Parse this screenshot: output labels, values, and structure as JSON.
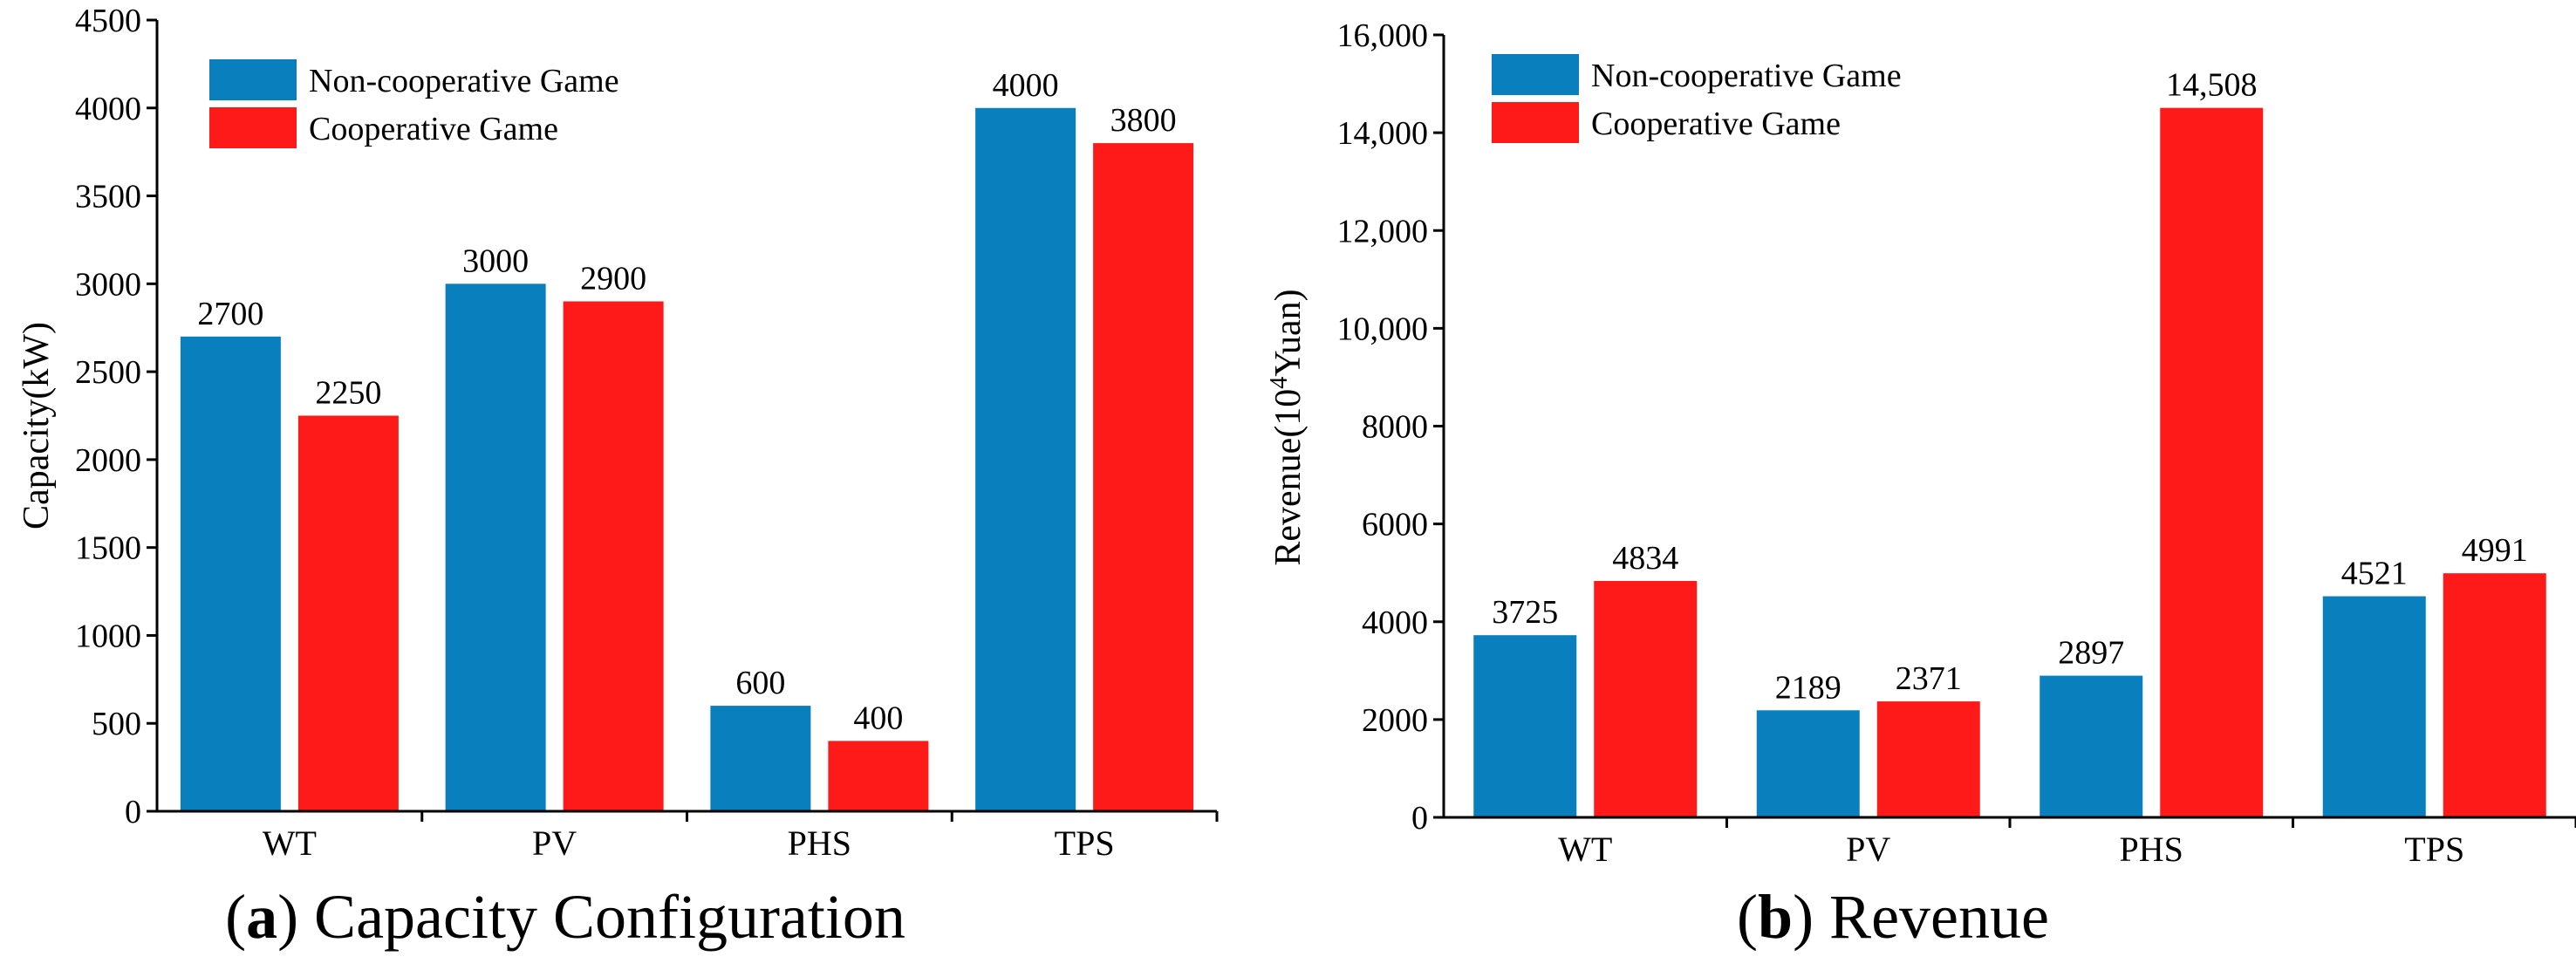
{
  "colors": {
    "series_a": "#0a7fbe",
    "series_b": "#ff1a1a",
    "axis": "#000000"
  },
  "chart_data": [
    {
      "type": "bar",
      "panel": "a",
      "caption_letter": "a",
      "caption_text": "Capacity Configuration",
      "title": "",
      "xlabel": "",
      "ylabel": "Capacity(kW)",
      "categories": [
        "WT",
        "PV",
        "PHS",
        "TPS"
      ],
      "series": [
        {
          "name": "Non-cooperative Game",
          "values": [
            2700,
            3000,
            600,
            4000
          ]
        },
        {
          "name": "Cooperative Game",
          "values": [
            2250,
            2900,
            400,
            3800
          ]
        }
      ],
      "value_labels": [
        [
          "2700",
          "3000",
          "600",
          "4000"
        ],
        [
          "2250",
          "2900",
          "400",
          "3800"
        ]
      ],
      "ylim": [
        0,
        4500
      ],
      "yticks": [
        0,
        500,
        1000,
        1500,
        2000,
        2500,
        3000,
        3500,
        4000,
        4500
      ],
      "ytick_labels": [
        "0",
        "500",
        "1000",
        "1500",
        "2000",
        "2500",
        "3000",
        "3500",
        "4000",
        "4500"
      ],
      "legend_position": "top-left",
      "grid": false
    },
    {
      "type": "bar",
      "panel": "b",
      "caption_letter": "b",
      "caption_text": "Revenue",
      "title": "",
      "xlabel": "",
      "ylabel_prefix": "Revenue(10",
      "ylabel_sup": "4",
      "ylabel_suffix": "Yuan)",
      "categories": [
        "WT",
        "PV",
        "PHS",
        "TPS"
      ],
      "series": [
        {
          "name": "Non-cooperative Game",
          "values": [
            3725,
            2189,
            2897,
            4521
          ]
        },
        {
          "name": "Cooperative Game",
          "values": [
            4834,
            2371,
            14508,
            4991
          ]
        }
      ],
      "value_labels": [
        [
          "3725",
          "2189",
          "2897",
          "4521"
        ],
        [
          "4834",
          "2371",
          "14,508",
          "4991"
        ]
      ],
      "ylim": [
        0,
        16000
      ],
      "yticks": [
        0,
        2000,
        4000,
        6000,
        8000,
        10000,
        12000,
        14000,
        16000
      ],
      "ytick_labels": [
        "0",
        "2000",
        "4000",
        "6000",
        "8000",
        "10,000",
        "12,000",
        "14,000",
        "16,000"
      ],
      "legend_position": "top-left",
      "grid": false
    }
  ]
}
